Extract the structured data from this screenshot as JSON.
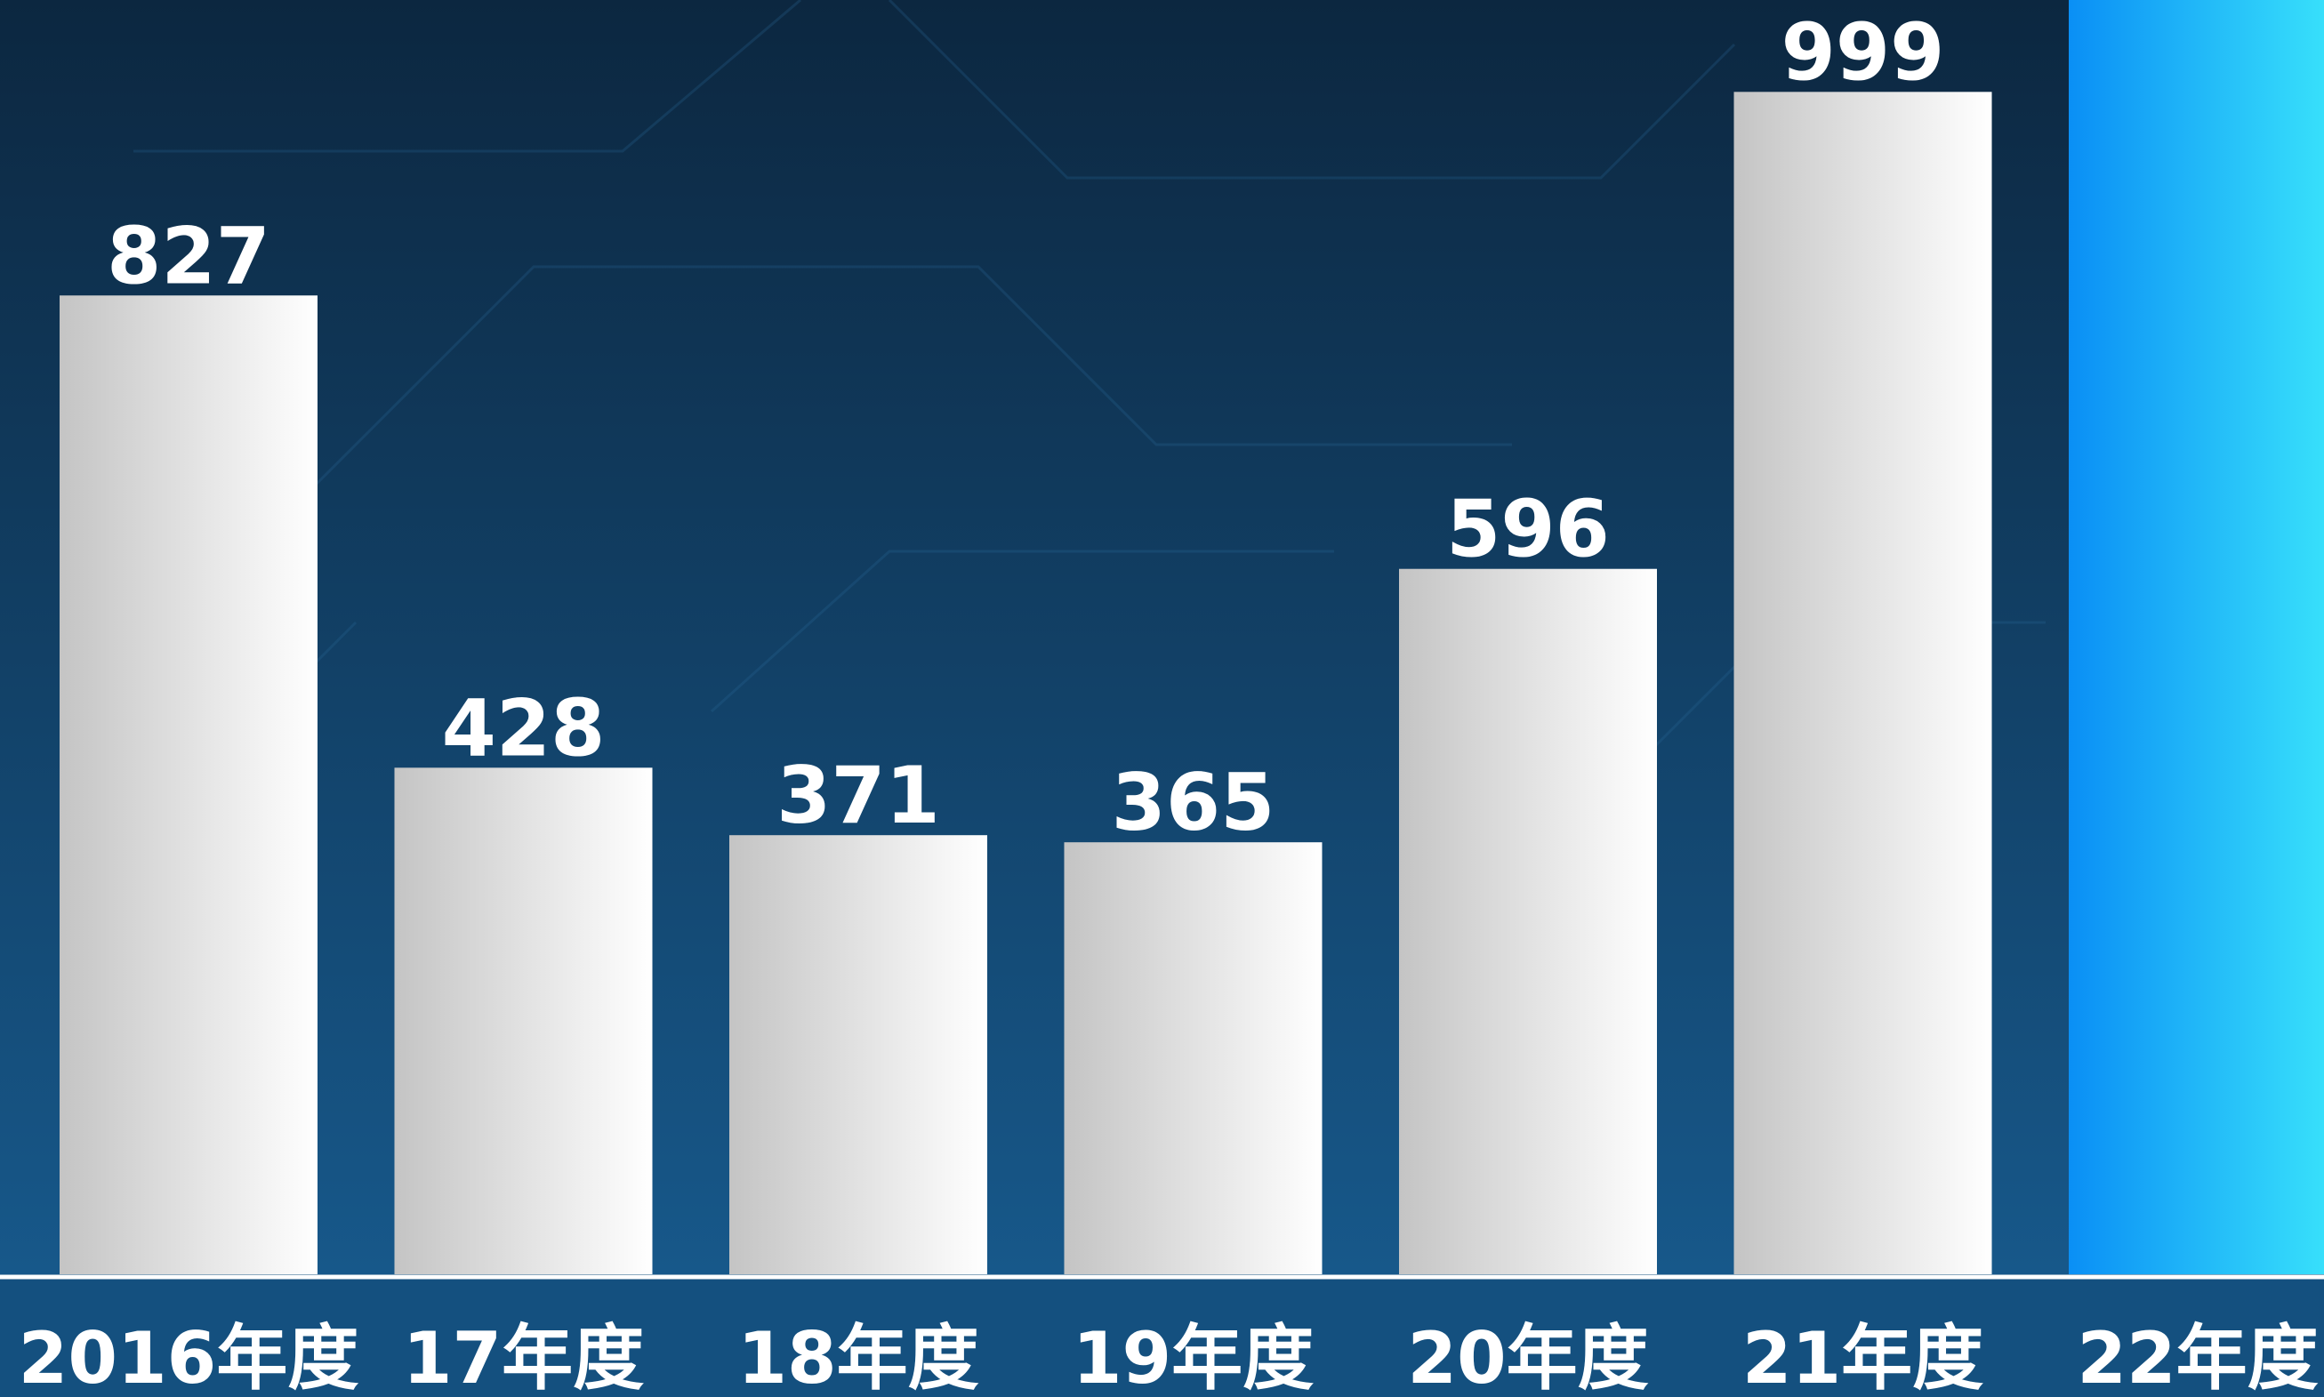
{
  "chart_data": {
    "type": "bar",
    "categories": [
      "2016年度",
      "17年度",
      "18年度",
      "19年度",
      "20年度",
      "21年度",
      "22年度"
    ],
    "values": [
      827,
      428,
      371,
      365,
      596,
      999,
      1077
    ],
    "value_labels": [
      "827",
      "428",
      "371",
      "365",
      "596",
      "999",
      null
    ],
    "colors": [
      [
        "#c4c4c4",
        "#ffffff"
      ],
      [
        "#c4c4c4",
        "#ffffff"
      ],
      [
        "#c4c4c4",
        "#ffffff"
      ],
      [
        "#c4c4c4",
        "#ffffff"
      ],
      [
        "#c4c4c4",
        "#ffffff"
      ],
      [
        "#c4c4c4",
        "#ffffff"
      ],
      [
        "#0a8ff5",
        "#38e0fb"
      ]
    ]
  }
}
